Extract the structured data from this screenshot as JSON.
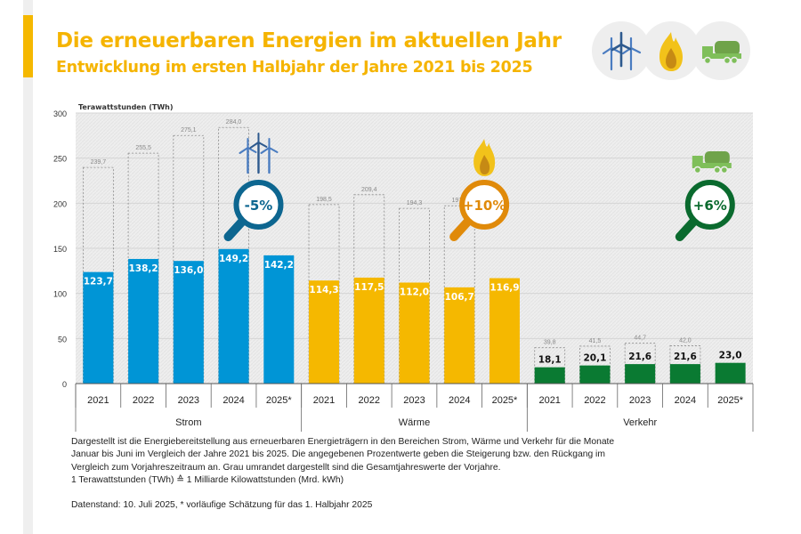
{
  "header": {
    "title": "Die erneuerbaren Energien im aktuellen Jahr",
    "subtitle": "Entwicklung im ersten Halbjahr der Jahre 2021 bis 2025",
    "icons": [
      "wind-turbines-icon",
      "flame-icon",
      "tank-truck-icon"
    ]
  },
  "chart_data": {
    "type": "bar",
    "title": "Die erneuerbaren Energien im aktuellen Jahr",
    "subtitle": "Entwicklung im ersten Halbjahr der Jahre 2021 bis 2025",
    "ylabel": "Terawattstunden (TWh)",
    "xlabel": "",
    "ylim": [
      0,
      300
    ],
    "yticks": [
      0,
      50,
      100,
      150,
      200,
      250,
      300
    ],
    "grid": true,
    "categories": [
      "2021",
      "2022",
      "2023",
      "2024",
      "2025*"
    ],
    "groups": [
      {
        "name": "Strom",
        "color": "#0095d6",
        "change_label": "-5%",
        "change_color": "#0d6690",
        "icon": "wind-turbines-icon",
        "half_year_values": [
          123.7,
          138.2,
          136.0,
          149.2,
          142.2
        ],
        "half_year_labels": [
          "123,7",
          "138,2",
          "136,0",
          "149,2",
          "142,2"
        ],
        "full_year_values": [
          239.7,
          255.5,
          275.1,
          284.0,
          null
        ],
        "full_year_labels": [
          "239,7",
          "255,5",
          "275,1",
          "284,0",
          null
        ]
      },
      {
        "name": "Wärme",
        "color": "#f5b800",
        "change_label": "+10%",
        "change_color": "#e08a0a",
        "icon": "flame-icon",
        "half_year_values": [
          114.3,
          117.5,
          112.0,
          106.7,
          116.9
        ],
        "half_year_labels": [
          "114,3",
          "117,5",
          "112,0",
          "106,7",
          "116,9"
        ],
        "full_year_values": [
          198.5,
          209.4,
          194.3,
          197.2,
          null
        ],
        "full_year_labels": [
          "198,5",
          "209,4",
          "194,3",
          "197,2",
          null
        ]
      },
      {
        "name": "Verkehr",
        "color": "#0a7a32",
        "change_label": "+6%",
        "change_color": "#0a6a2e",
        "icon": "tank-truck-icon",
        "half_year_values": [
          18.1,
          20.1,
          21.6,
          21.6,
          23.0
        ],
        "half_year_labels": [
          "18,1",
          "20,1",
          "21,6",
          "21,6",
          "23,0"
        ],
        "full_year_values": [
          39.8,
          41.5,
          44.7,
          42.0,
          null
        ],
        "full_year_labels": [
          "39,8",
          "41,5",
          "44,7",
          "42,0",
          null
        ]
      }
    ],
    "legend": "none"
  },
  "caption": {
    "lines": [
      "Dargestellt ist die Energiebereitstellung aus erneuerbaren Energieträgern in den Bereichen Strom, Wärme und Verkehr für die Monate",
      "Januar bis Juni im Vergleich der Jahre 2021 bis 2025. Die angegebenen Prozentwerte geben die Steigerung bzw. den Rückgang im",
      "Vergleich zum Vorjahreszeitraum an. Grau umrandet dargestellt sind die Gesamtjahreswerte der Vorjahre.",
      "1 Terawattstunden (TWh) ≙ 1 Milliarde Kilowattstunden (Mrd. kWh)"
    ],
    "source": "Datenstand: 10. Juli 2025, * vorläufige Schätzung für das 1. Halbjahr 2025"
  }
}
